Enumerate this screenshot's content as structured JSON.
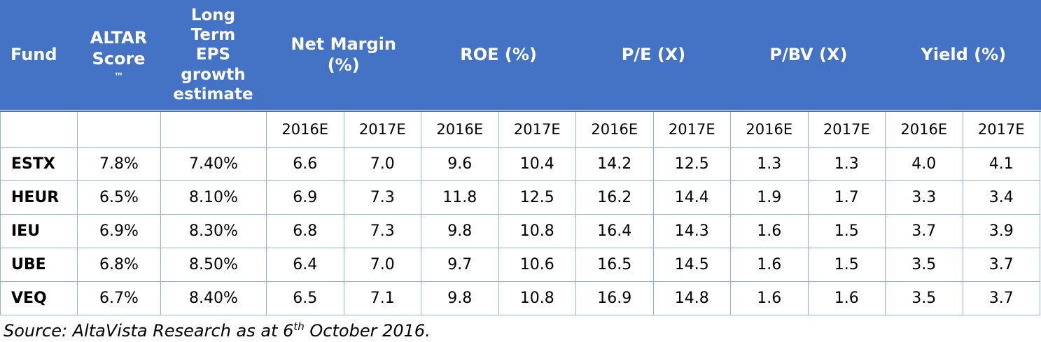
{
  "colors": {
    "header_bg": "#4472C4",
    "header_text": "#FFFFFF",
    "grid_border": "#95B3D7",
    "body_text": "#000000"
  },
  "table": {
    "fixed_columns": [
      {
        "label": "Fund"
      },
      {
        "label": "ALTAR Score",
        "tm": "™"
      },
      {
        "label": "Long Term EPS growth estimate"
      }
    ],
    "groups": [
      {
        "label": "Net Margin (%)",
        "subcolumns": [
          "2016E",
          "2017E"
        ]
      },
      {
        "label": "ROE (%)",
        "subcolumns": [
          "2016E",
          "2017E"
        ]
      },
      {
        "label": "P/E (X)",
        "subcolumns": [
          "2016E",
          "2017E"
        ]
      },
      {
        "label": "P/BV (X)",
        "subcolumns": [
          "2016E",
          "2017E"
        ]
      },
      {
        "label": "Yield (%)",
        "subcolumns": [
          "2016E",
          "2017E"
        ]
      }
    ],
    "rows": [
      {
        "fund": "ESTX",
        "altar_score": "7.8%",
        "lt_eps_growth": "7.40%",
        "values": [
          "6.6",
          "7.0",
          "9.6",
          "10.4",
          "14.2",
          "12.5",
          "1.3",
          "1.3",
          "4.0",
          "4.1"
        ]
      },
      {
        "fund": "HEUR",
        "altar_score": "6.5%",
        "lt_eps_growth": "8.10%",
        "values": [
          "6.9",
          "7.3",
          "11.8",
          "12.5",
          "16.2",
          "14.4",
          "1.9",
          "1.7",
          "3.3",
          "3.4"
        ]
      },
      {
        "fund": "IEU",
        "altar_score": "6.9%",
        "lt_eps_growth": "8.30%",
        "values": [
          "6.8",
          "7.3",
          "9.8",
          "10.8",
          "16.4",
          "14.3",
          "1.6",
          "1.5",
          "3.7",
          "3.9"
        ]
      },
      {
        "fund": "UBE",
        "altar_score": "6.8%",
        "lt_eps_growth": "8.50%",
        "values": [
          "6.4",
          "7.0",
          "9.7",
          "10.6",
          "16.5",
          "14.5",
          "1.6",
          "1.5",
          "3.5",
          "3.7"
        ]
      },
      {
        "fund": "VEQ",
        "altar_score": "6.7%",
        "lt_eps_growth": "8.40%",
        "values": [
          "6.5",
          "7.1",
          "9.8",
          "10.8",
          "16.9",
          "14.8",
          "1.6",
          "1.6",
          "3.5",
          "3.7"
        ]
      }
    ]
  },
  "footer": {
    "prefix": "Source: AltaVista Research as at 6",
    "sup": "th",
    "suffix": " October 2016."
  }
}
